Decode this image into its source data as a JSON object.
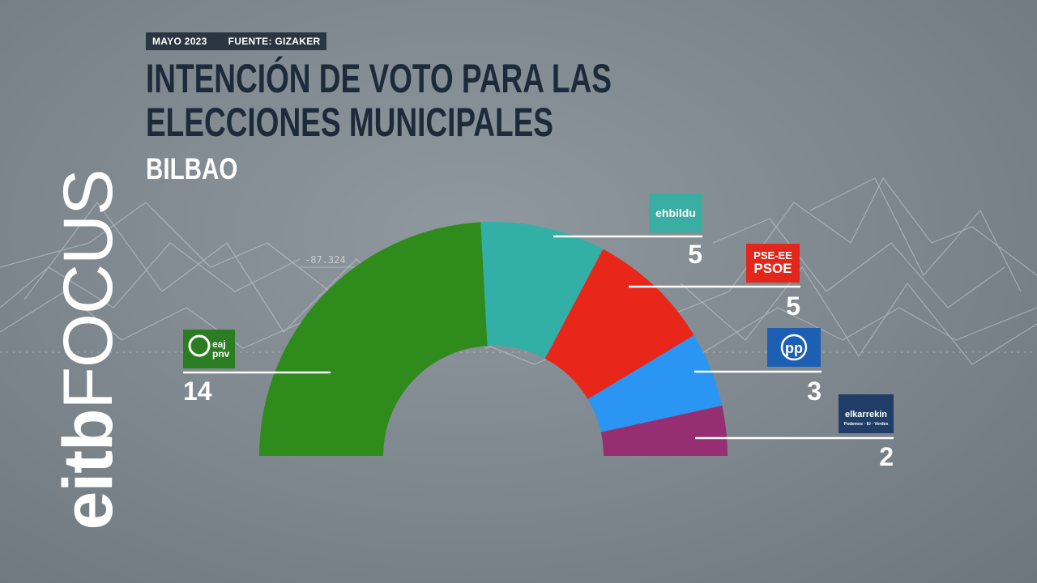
{
  "header": {
    "date": "MAYO 2023",
    "source": "FUENTE: GIZAKER",
    "title": "INTENCIÓN DE VOTO PARA LAS ELECCIONES MUNICIPALES",
    "subtitle": "BILBAO"
  },
  "brand": {
    "part1": "eitb",
    "part2": "FOCUS",
    "icon": "magnifier-icon"
  },
  "background_number": "-87.324",
  "colors": {
    "title": "#1d2a3a",
    "badge_bg": "#2b3642",
    "leader_line": "#ffffff"
  },
  "chart_data": {
    "type": "parliament-semicircle",
    "total_seats": 29,
    "parties": [
      {
        "name": "EAJ-PNV",
        "logo_text": [
          "eaj",
          "pnv"
        ],
        "seats": 14,
        "color": "#2e8b1c",
        "logo_bg": "#2b7d22"
      },
      {
        "name": "EH Bildu",
        "logo_text": [
          "ehbildu"
        ],
        "seats": 5,
        "color": "#33b0a6",
        "logo_bg": "#3aaea3"
      },
      {
        "name": "PSE-EE PSOE",
        "logo_text": [
          "PSE-EE",
          "PSOE"
        ],
        "seats": 5,
        "color": "#e8261a",
        "logo_bg": "#e3261b"
      },
      {
        "name": "PP",
        "logo_text": [
          "pp"
        ],
        "seats": 3,
        "color": "#2a95f2",
        "logo_bg": "#1d5fb3"
      },
      {
        "name": "Elkarrekin",
        "logo_text": [
          "elkarrekin",
          "Podemos · IU · Verdes"
        ],
        "seats": 2,
        "color": "#962e72",
        "logo_bg": "#1f3d66"
      }
    ]
  }
}
